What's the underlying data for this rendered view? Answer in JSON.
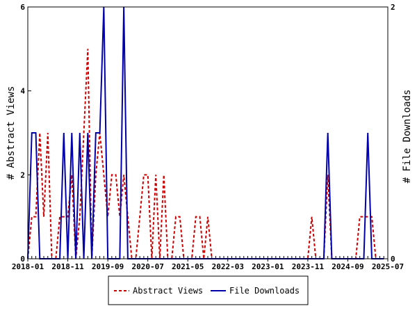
{
  "chart_data": {
    "type": "line",
    "ylabel_left": "# Abstract Views",
    "ylabel_right": "# File Downloads",
    "xticks": [
      "2018-01",
      "2018-11",
      "2019-09",
      "2020-07",
      "2021-05",
      "2022-03",
      "2023-01",
      "2023-11",
      "2024-09",
      "2025-07"
    ],
    "yticks_left": [
      "0",
      "2",
      "4",
      "6"
    ],
    "yticks_right": [
      "0",
      "2"
    ],
    "ylim_left": [
      0,
      6
    ],
    "ylim_right": [
      0,
      2
    ],
    "series": [
      {
        "name": "Abstract Views",
        "color": "#cc0000",
        "style": "dashed",
        "axis": "left",
        "points": [
          [
            "2018-01",
            0
          ],
          [
            "2018-02",
            1
          ],
          [
            "2018-03",
            1
          ],
          [
            "2018-04",
            3
          ],
          [
            "2018-05",
            1
          ],
          [
            "2018-06",
            3
          ],
          [
            "2018-07",
            0
          ],
          [
            "2018-08",
            0
          ],
          [
            "2018-09",
            1
          ],
          [
            "2018-10",
            1
          ],
          [
            "2018-11",
            1
          ],
          [
            "2018-12",
            2
          ],
          [
            "2019-01",
            0
          ],
          [
            "2019-02",
            1
          ],
          [
            "2019-03",
            3
          ],
          [
            "2019-04",
            5
          ],
          [
            "2019-05",
            0
          ],
          [
            "2019-06",
            2
          ],
          [
            "2019-07",
            3
          ],
          [
            "2019-08",
            2
          ],
          [
            "2019-09",
            1
          ],
          [
            "2019-10",
            2
          ],
          [
            "2019-11",
            2
          ],
          [
            "2019-12",
            1
          ],
          [
            "2020-01",
            2
          ],
          [
            "2020-02",
            1
          ],
          [
            "2020-03",
            0
          ],
          [
            "2020-04",
            0
          ],
          [
            "2020-05",
            1
          ],
          [
            "2020-06",
            2
          ],
          [
            "2020-07",
            2
          ],
          [
            "2020-08",
            0
          ],
          [
            "2020-09",
            2
          ],
          [
            "2020-10",
            0
          ],
          [
            "2020-11",
            2
          ],
          [
            "2020-12",
            0
          ],
          [
            "2021-01",
            0
          ],
          [
            "2021-02",
            1
          ],
          [
            "2021-03",
            1
          ],
          [
            "2021-04",
            0
          ],
          [
            "2021-05",
            0
          ],
          [
            "2021-06",
            0
          ],
          [
            "2021-07",
            1
          ],
          [
            "2021-08",
            1
          ],
          [
            "2021-09",
            0
          ],
          [
            "2021-10",
            1
          ],
          [
            "2021-11",
            0
          ],
          [
            "2021-12",
            0
          ],
          [
            "2022-01",
            0
          ],
          [
            "2022-02",
            0
          ],
          [
            "2022-03",
            0
          ],
          [
            "2022-04",
            0
          ],
          [
            "2022-05",
            0
          ],
          [
            "2022-06",
            0
          ],
          [
            "2022-07",
            0
          ],
          [
            "2022-08",
            0
          ],
          [
            "2022-09",
            0
          ],
          [
            "2022-10",
            0
          ],
          [
            "2022-11",
            0
          ],
          [
            "2022-12",
            0
          ],
          [
            "2023-01",
            0
          ],
          [
            "2023-02",
            0
          ],
          [
            "2023-03",
            0
          ],
          [
            "2023-04",
            0
          ],
          [
            "2023-05",
            0
          ],
          [
            "2023-06",
            0
          ],
          [
            "2023-07",
            0
          ],
          [
            "2023-08",
            0
          ],
          [
            "2023-09",
            0
          ],
          [
            "2023-10",
            0
          ],
          [
            "2023-11",
            0
          ],
          [
            "2023-12",
            1
          ],
          [
            "2024-01",
            0
          ],
          [
            "2024-02",
            0
          ],
          [
            "2024-03",
            0
          ],
          [
            "2024-04",
            2
          ],
          [
            "2024-05",
            0
          ],
          [
            "2024-06",
            0
          ],
          [
            "2024-07",
            0
          ],
          [
            "2024-08",
            0
          ],
          [
            "2024-09",
            0
          ],
          [
            "2024-10",
            0
          ],
          [
            "2024-11",
            0
          ],
          [
            "2024-12",
            1
          ],
          [
            "2025-01",
            1
          ],
          [
            "2025-02",
            1
          ],
          [
            "2025-03",
            1
          ],
          [
            "2025-04",
            0
          ],
          [
            "2025-05",
            0
          ],
          [
            "2025-06",
            0
          ]
        ]
      },
      {
        "name": "File Downloads",
        "color": "#0000aa",
        "style": "solid",
        "axis": "right",
        "points": [
          [
            "2018-01",
            0
          ],
          [
            "2018-02",
            1
          ],
          [
            "2018-03",
            1
          ],
          [
            "2018-04",
            0
          ],
          [
            "2018-05",
            0
          ],
          [
            "2018-06",
            0
          ],
          [
            "2018-07",
            0
          ],
          [
            "2018-08",
            0
          ],
          [
            "2018-09",
            0
          ],
          [
            "2018-10",
            1
          ],
          [
            "2018-11",
            0
          ],
          [
            "2018-12",
            1
          ],
          [
            "2019-01",
            0
          ],
          [
            "2019-02",
            1
          ],
          [
            "2019-03",
            0
          ],
          [
            "2019-04",
            1
          ],
          [
            "2019-05",
            0
          ],
          [
            "2019-06",
            1
          ],
          [
            "2019-07",
            1
          ],
          [
            "2019-08",
            2
          ],
          [
            "2019-09",
            0
          ],
          [
            "2019-10",
            0
          ],
          [
            "2019-11",
            0
          ],
          [
            "2019-12",
            0
          ],
          [
            "2020-01",
            2
          ],
          [
            "2020-02",
            0
          ],
          [
            "2020-03",
            0
          ],
          [
            "2020-04",
            0
          ],
          [
            "2020-05",
            0
          ],
          [
            "2020-06",
            0
          ],
          [
            "2020-07",
            0
          ],
          [
            "2020-08",
            0
          ],
          [
            "2020-09",
            0
          ],
          [
            "2020-10",
            0
          ],
          [
            "2020-11",
            0
          ],
          [
            "2020-12",
            0
          ],
          [
            "2021-01",
            0
          ],
          [
            "2021-02",
            0
          ],
          [
            "2021-03",
            0
          ],
          [
            "2021-04",
            0
          ],
          [
            "2021-05",
            0
          ],
          [
            "2021-06",
            0
          ],
          [
            "2021-07",
            0
          ],
          [
            "2021-08",
            0
          ],
          [
            "2021-09",
            0
          ],
          [
            "2021-10",
            0
          ],
          [
            "2021-11",
            0
          ],
          [
            "2021-12",
            0
          ],
          [
            "2022-01",
            0
          ],
          [
            "2022-02",
            0
          ],
          [
            "2022-03",
            0
          ],
          [
            "2022-04",
            0
          ],
          [
            "2022-05",
            0
          ],
          [
            "2022-06",
            0
          ],
          [
            "2022-07",
            0
          ],
          [
            "2022-08",
            0
          ],
          [
            "2022-09",
            0
          ],
          [
            "2022-10",
            0
          ],
          [
            "2022-11",
            0
          ],
          [
            "2022-12",
            0
          ],
          [
            "2023-01",
            0
          ],
          [
            "2023-02",
            0
          ],
          [
            "2023-03",
            0
          ],
          [
            "2023-04",
            0
          ],
          [
            "2023-05",
            0
          ],
          [
            "2023-06",
            0
          ],
          [
            "2023-07",
            0
          ],
          [
            "2023-08",
            0
          ],
          [
            "2023-09",
            0
          ],
          [
            "2023-10",
            0
          ],
          [
            "2023-11",
            0
          ],
          [
            "2023-12",
            0
          ],
          [
            "2024-01",
            0
          ],
          [
            "2024-02",
            0
          ],
          [
            "2024-03",
            0
          ],
          [
            "2024-04",
            1
          ],
          [
            "2024-05",
            0
          ],
          [
            "2024-06",
            0
          ],
          [
            "2024-07",
            0
          ],
          [
            "2024-08",
            0
          ],
          [
            "2024-09",
            0
          ],
          [
            "2024-10",
            0
          ],
          [
            "2024-11",
            0
          ],
          [
            "2024-12",
            0
          ],
          [
            "2025-01",
            0
          ],
          [
            "2025-02",
            1
          ],
          [
            "2025-03",
            0
          ],
          [
            "2025-04",
            0
          ],
          [
            "2025-05",
            0
          ],
          [
            "2025-06",
            0
          ]
        ]
      }
    ],
    "grid": false,
    "legend_position": "bottom"
  }
}
